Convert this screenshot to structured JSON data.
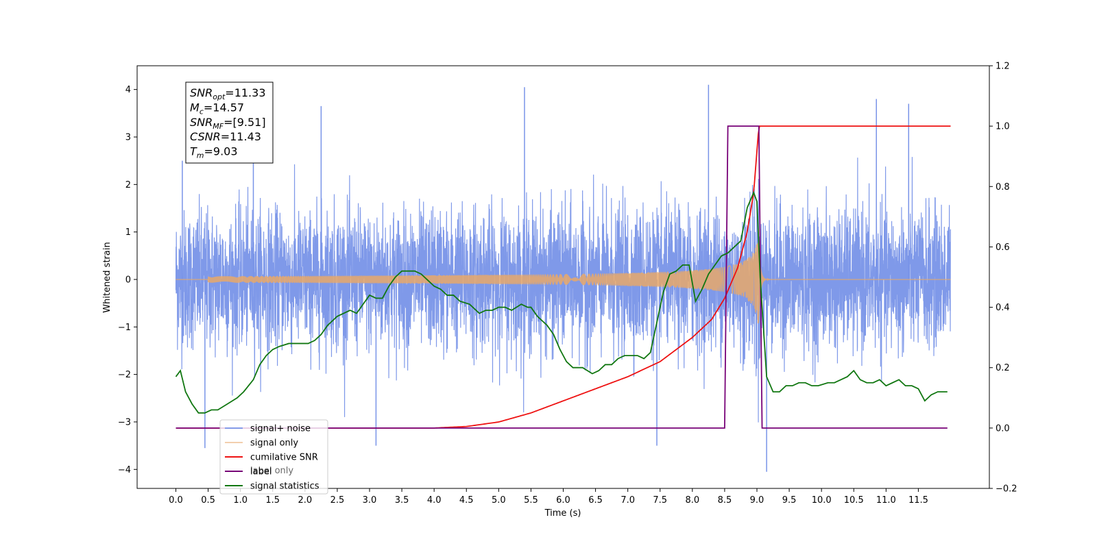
{
  "chart_data": {
    "type": "line",
    "xlabel": "Time (s)",
    "ylabel": "Whitened strain",
    "xlim": [
      -0.6,
      12.6
    ],
    "ylim": [
      -4.4,
      4.5
    ],
    "y2lim": [
      -0.2,
      1.2
    ],
    "x_ticks": [
      "0.0",
      "0.5",
      "1.0",
      "1.5",
      "2.0",
      "2.5",
      "3.0",
      "3.5",
      "4.0",
      "4.5",
      "5.0",
      "5.5",
      "6.0",
      "6.5",
      "7.0",
      "7.5",
      "8.0",
      "8.5",
      "9.0",
      "9.5",
      "10.0",
      "10.5",
      "11.0",
      "11.5"
    ],
    "y_ticks": [
      "4",
      "3",
      "2",
      "1",
      "0",
      "−1",
      "−2",
      "−3",
      "−4"
    ],
    "y2_ticks": [
      "1.2",
      "1.0",
      "0.8",
      "0.6",
      "0.4",
      "0.2",
      "0.0",
      "−0.2"
    ],
    "signal_noise": {
      "name": "signal+ noise",
      "color": "#7893e8",
      "t_range": [
        0.0,
        12.0
      ],
      "envelope_typical": 1.7,
      "peak_spikes": [
        {
          "t": 0.1,
          "y": 2.5
        },
        {
          "t": 1.2,
          "y": 3.2
        },
        {
          "t": 2.25,
          "y": 3.65
        },
        {
          "t": 3.1,
          "y": -3.5
        },
        {
          "t": 5.4,
          "y": 4.05
        },
        {
          "t": 8.25,
          "y": 4.1
        },
        {
          "t": 9.15,
          "y": -4.05
        },
        {
          "t": 10.85,
          "y": 3.8
        },
        {
          "t": 11.35,
          "y": 3.7
        },
        {
          "t": 0.45,
          "y": -3.55
        },
        {
          "t": 7.45,
          "y": -3.5
        }
      ]
    },
    "signal_only": {
      "name": "signal only",
      "color": "#e7a86a",
      "chirp_start": 4.0,
      "merger_time": 9.03,
      "peak_amplitude": 1.15
    },
    "cumulative_snr": {
      "name": "cumilative SNR",
      "color": "#ee1111",
      "x": [
        0,
        4.0,
        4.5,
        5.0,
        5.5,
        6.0,
        6.5,
        7.0,
        7.5,
        8.0,
        8.3,
        8.5,
        8.7,
        8.85,
        8.95,
        9.03,
        12.0
      ],
      "y": [
        0,
        0,
        0.005,
        0.02,
        0.05,
        0.09,
        0.13,
        0.17,
        0.22,
        0.3,
        0.36,
        0.43,
        0.53,
        0.65,
        0.78,
        1.0,
        1.0
      ]
    },
    "label": {
      "name": "label",
      "color": "#770077",
      "x": [
        0,
        8.5,
        8.55,
        9.03,
        9.08,
        11.95
      ],
      "y": [
        0,
        0,
        1.0,
        1.0,
        0,
        0
      ]
    },
    "label_only_text": "label only",
    "signal_statistics": {
      "name": "signal statistics",
      "color": "#117711",
      "x": [
        0.0,
        0.07,
        0.15,
        0.25,
        0.35,
        0.45,
        0.55,
        0.65,
        0.8,
        0.95,
        1.05,
        1.2,
        1.3,
        1.4,
        1.5,
        1.6,
        1.75,
        1.9,
        2.05,
        2.15,
        2.25,
        2.35,
        2.5,
        2.7,
        2.8,
        2.9,
        3.0,
        3.1,
        3.2,
        3.3,
        3.4,
        3.5,
        3.6,
        3.7,
        3.8,
        3.9,
        4.0,
        4.1,
        4.2,
        4.3,
        4.4,
        4.55,
        4.7,
        4.8,
        4.9,
        5.0,
        5.1,
        5.2,
        5.35,
        5.45,
        5.5,
        5.6,
        5.75,
        5.85,
        5.95,
        6.05,
        6.15,
        6.3,
        6.45,
        6.55,
        6.65,
        6.75,
        6.85,
        6.95,
        7.05,
        7.15,
        7.25,
        7.35,
        7.45,
        7.55,
        7.65,
        7.75,
        7.85,
        7.95,
        8.05,
        8.15,
        8.25,
        8.35,
        8.45,
        8.55,
        8.65,
        8.75,
        8.85,
        8.95,
        9.0,
        9.05,
        9.15,
        9.25,
        9.35,
        9.45,
        9.55,
        9.65,
        9.75,
        9.85,
        9.95,
        10.1,
        10.2,
        10.3,
        10.4,
        10.5,
        10.6,
        10.7,
        10.8,
        10.9,
        11.0,
        11.1,
        11.2,
        11.3,
        11.4,
        11.5,
        11.6,
        11.7,
        11.8,
        11.95
      ],
      "y": [
        0.17,
        0.19,
        0.12,
        0.08,
        0.05,
        0.05,
        0.06,
        0.06,
        0.08,
        0.1,
        0.12,
        0.16,
        0.21,
        0.24,
        0.26,
        0.27,
        0.28,
        0.28,
        0.28,
        0.29,
        0.31,
        0.34,
        0.37,
        0.39,
        0.38,
        0.41,
        0.44,
        0.43,
        0.43,
        0.47,
        0.5,
        0.52,
        0.52,
        0.52,
        0.51,
        0.49,
        0.47,
        0.46,
        0.44,
        0.44,
        0.42,
        0.41,
        0.38,
        0.39,
        0.39,
        0.4,
        0.4,
        0.39,
        0.41,
        0.4,
        0.4,
        0.37,
        0.34,
        0.31,
        0.26,
        0.22,
        0.2,
        0.2,
        0.18,
        0.19,
        0.21,
        0.21,
        0.23,
        0.24,
        0.24,
        0.24,
        0.23,
        0.25,
        0.35,
        0.45,
        0.51,
        0.52,
        0.54,
        0.54,
        0.42,
        0.46,
        0.51,
        0.54,
        0.57,
        0.58,
        0.6,
        0.62,
        0.73,
        0.78,
        0.75,
        0.5,
        0.17,
        0.12,
        0.12,
        0.14,
        0.14,
        0.15,
        0.15,
        0.14,
        0.14,
        0.15,
        0.15,
        0.16,
        0.17,
        0.19,
        0.16,
        0.15,
        0.15,
        0.16,
        0.14,
        0.15,
        0.16,
        0.14,
        0.14,
        0.13,
        0.09,
        0.11,
        0.12,
        0.12
      ]
    },
    "stats_box": {
      "lines": [
        {
          "base": "SNR",
          "sub": "opt",
          "val": "=11.33"
        },
        {
          "base": "M",
          "sub": "c",
          "val": "=14.57"
        },
        {
          "base": "SNR",
          "sub": "MF",
          "val": "=[9.51]"
        },
        {
          "base": "CSNR",
          "sub": "",
          "val": "=11.43"
        },
        {
          "base": "T",
          "sub": "m",
          "val": "=9.03"
        }
      ]
    },
    "legend_position": "lower-left"
  }
}
